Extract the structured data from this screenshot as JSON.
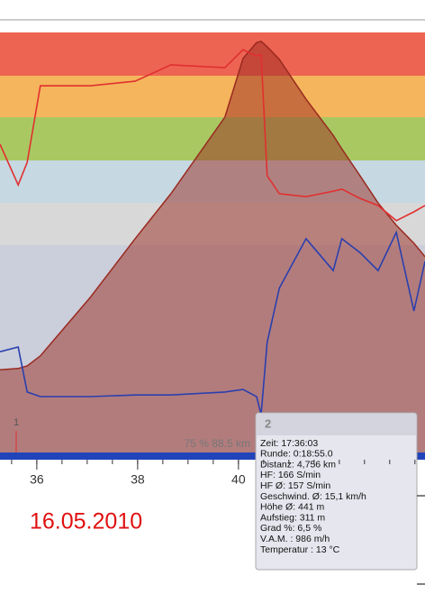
{
  "chart_data": {
    "type": "line",
    "x": [
      35.27,
      35.63,
      35.81,
      36.07,
      37.06,
      37.95,
      38.66,
      39.73,
      40.09,
      40.36,
      40.45,
      40.57,
      40.81,
      41.34,
      41.88,
      42.05,
      42.41,
      42.77,
      43.13,
      43.48,
      43.7
    ],
    "series": [
      {
        "color": "#9a2a20",
        "area": true,
        "values": [
          19.7,
          20.0,
          20.6,
          23.0,
          36.9,
          50.9,
          61.6,
          79.8,
          93.8,
          97.6,
          97.9,
          96.6,
          93.6,
          84.1,
          75.5,
          72.3,
          65.9,
          59.4,
          54.1,
          49.8,
          46.6
        ]
      },
      {
        "color": "#e03030",
        "area": false,
        "values": [
          73.4,
          63.7,
          69.1,
          87.3,
          87.3,
          88.4,
          92.3,
          91.6,
          95.9,
          94.4,
          94.8,
          65.9,
          61.6,
          60.9,
          62.2,
          62.7,
          60.5,
          58.8,
          55.2,
          57.3,
          58.8
        ]
      },
      {
        "color": "#2a3fae",
        "area": false,
        "values": [
          24.0,
          25.1,
          14.4,
          13.3,
          13.3,
          13.7,
          13.7,
          14.4,
          15.0,
          13.3,
          9.0,
          26.2,
          39.1,
          50.9,
          43.3,
          50.9,
          47.6,
          43.3,
          52.4,
          33.7,
          45.5
        ]
      }
    ],
    "xlim": [
      35.27,
      43.7
    ],
    "xticks": [
      36,
      38,
      40
    ],
    "ylim": [
      0,
      100
    ],
    "annotations": [
      "1",
      "75 % 88.5 km"
    ]
  },
  "date": "16.05.2010",
  "tooltip": {
    "title": "2",
    "lines": [
      "Zeit: 17:36:03",
      "Runde: 0:18:55.0",
      "Distanz:  4,756 km",
      "HF: 166 S/min",
      "HF Ø:  157 S/min",
      "Geschwind. Ø:  15,1 km/h",
      "Höhe Ø:  441 m",
      "Aufstieg:  311 m",
      "Grad %: 6,5 %",
      "V.A.M. : 986 m/h",
      "Temperatur : 13 °C"
    ]
  }
}
